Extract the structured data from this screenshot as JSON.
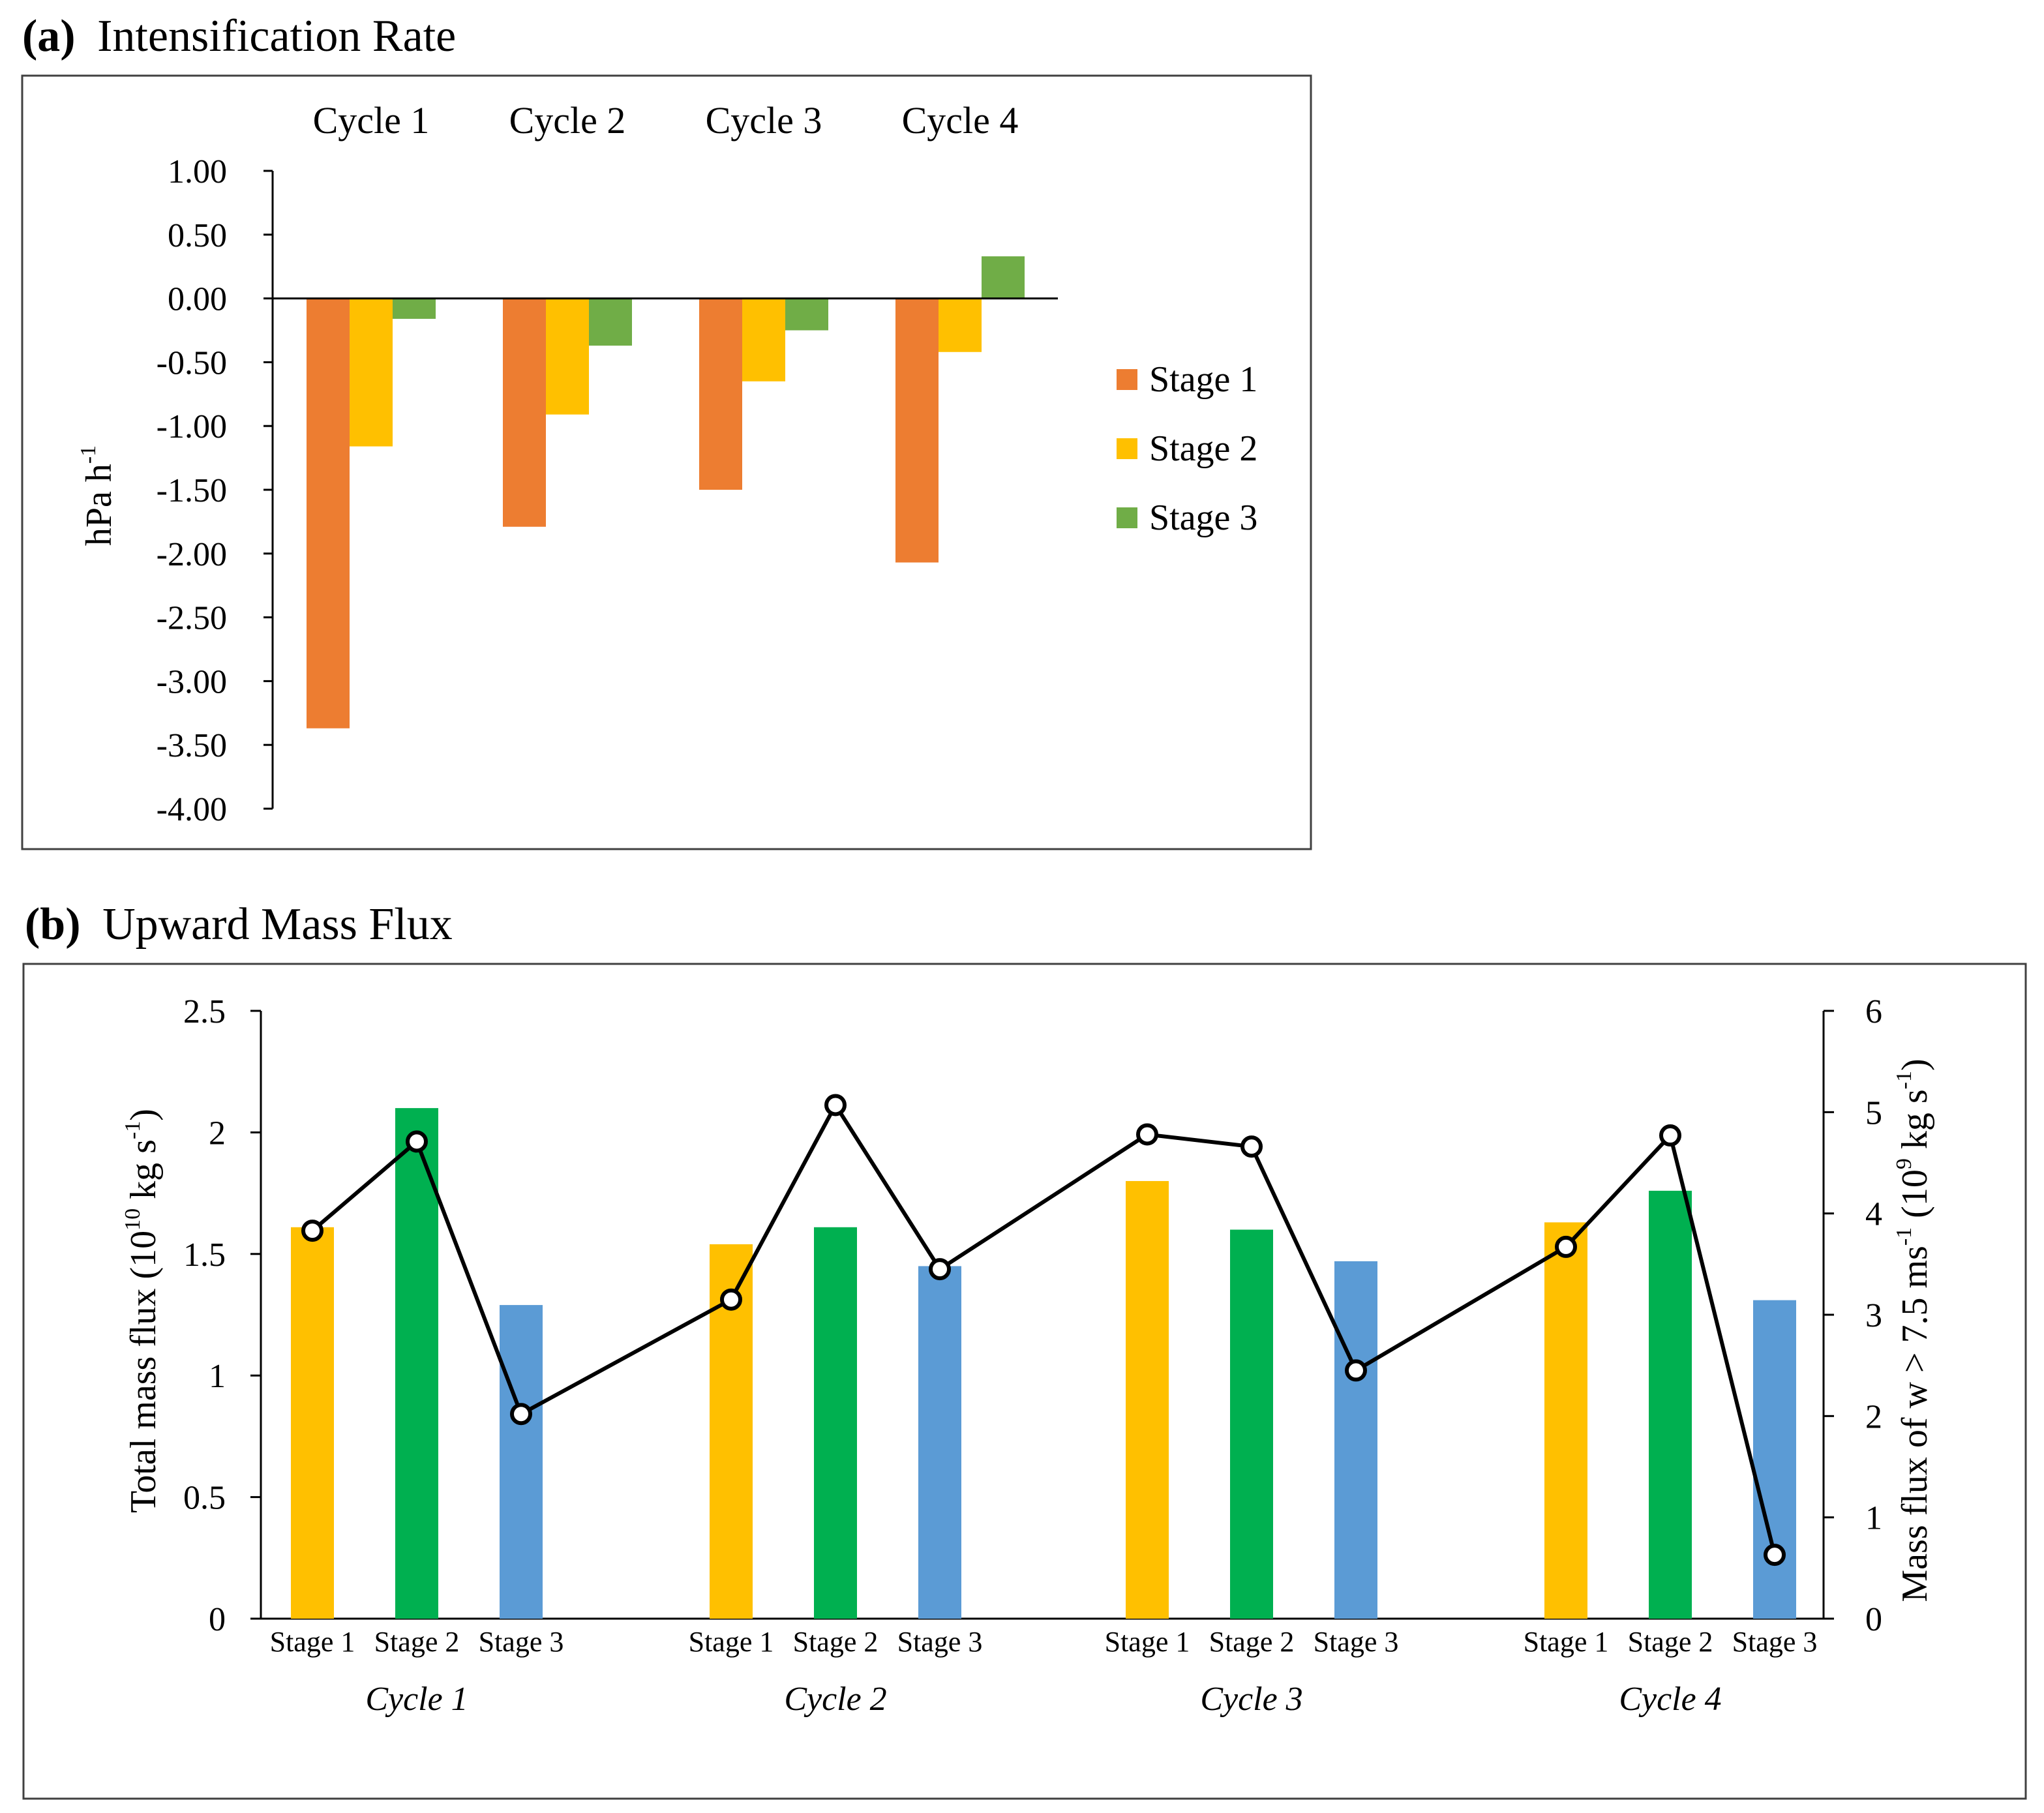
{
  "panel_a": {
    "letter": "(a)",
    "title": "Intensification Rate",
    "chart_data": {
      "type": "bar",
      "categories": [
        "Cycle 1",
        "Cycle 2",
        "Cycle 3",
        "Cycle 4"
      ],
      "series": [
        {
          "name": "Stage 1",
          "color": "#ED7D31",
          "values": [
            -3.37,
            -1.79,
            -1.5,
            -2.07
          ]
        },
        {
          "name": "Stage 2",
          "color": "#FFC000",
          "values": [
            -1.16,
            -0.91,
            -0.65,
            -0.42
          ]
        },
        {
          "name": "Stage 3",
          "color": "#70AD47",
          "values": [
            -0.16,
            -0.37,
            -0.25,
            0.33
          ]
        }
      ],
      "ylabel": "hPa h",
      "ylabel_sup": "-1",
      "ylim": [
        -4.0,
        1.0
      ],
      "yticks": [
        "1.00",
        "0.50",
        "0.00",
        "-0.50",
        "-1.00",
        "-1.50",
        "-2.00",
        "-2.50",
        "-3.00",
        "-3.50",
        "-4.00"
      ],
      "ytick_values": [
        1.0,
        0.5,
        0.0,
        -0.5,
        -1.0,
        -1.5,
        -2.0,
        -2.5,
        -3.0,
        -3.5,
        -4.0
      ],
      "legend_position": "right"
    }
  },
  "panel_b": {
    "letter": "(b)",
    "title": "Upward Mass Flux",
    "chart_data": {
      "type": "bar+line",
      "cycles": [
        "Cycle 1",
        "Cycle 2",
        "Cycle 3",
        "Cycle 4"
      ],
      "stages": [
        "Stage 1",
        "Stage 2",
        "Stage 3"
      ],
      "stage_colors": [
        "#FFC000",
        "#00B050",
        "#5B9BD5"
      ],
      "bars_total_mass_flux": [
        [
          1.61,
          2.1,
          1.29
        ],
        [
          1.54,
          1.61,
          1.45
        ],
        [
          1.8,
          1.6,
          1.47
        ],
        [
          1.63,
          1.76,
          1.31
        ]
      ],
      "line_mass_flux_w_gt_7_5": [
        [
          3.83,
          4.71,
          2.02
        ],
        [
          3.15,
          5.07,
          3.45
        ],
        [
          4.78,
          4.66,
          2.45
        ],
        [
          3.67,
          4.77,
          0.63
        ]
      ],
      "line_color": "#000000",
      "ylabel_left": "Total  mass  flux (10",
      "ylabel_left_sup": "10",
      "ylabel_left_unit": " kg s",
      "ylabel_left_unit_sup": "-1",
      "ylabel_left_close": ")",
      "ylabel_right": "Mass  flux  of  w > 7.5 ms",
      "ylabel_right_sup": "-1",
      "ylabel_right_mid": "  (10",
      "ylabel_right_sup2": "9",
      "ylabel_right_unit": " kg s",
      "ylabel_right_unit_sup": "-1",
      "ylabel_right_close": ")",
      "ylim_left": [
        0,
        2.5
      ],
      "ylim_right": [
        0,
        6
      ],
      "yticks_left": [
        "0",
        "0.5",
        "1",
        "1.5",
        "2",
        "2.5"
      ],
      "yticks_left_values": [
        0,
        0.5,
        1,
        1.5,
        2,
        2.5
      ],
      "yticks_right": [
        "0",
        "1",
        "2",
        "3",
        "4",
        "5",
        "6"
      ],
      "yticks_right_values": [
        0,
        1,
        2,
        3,
        4,
        5,
        6
      ]
    }
  }
}
